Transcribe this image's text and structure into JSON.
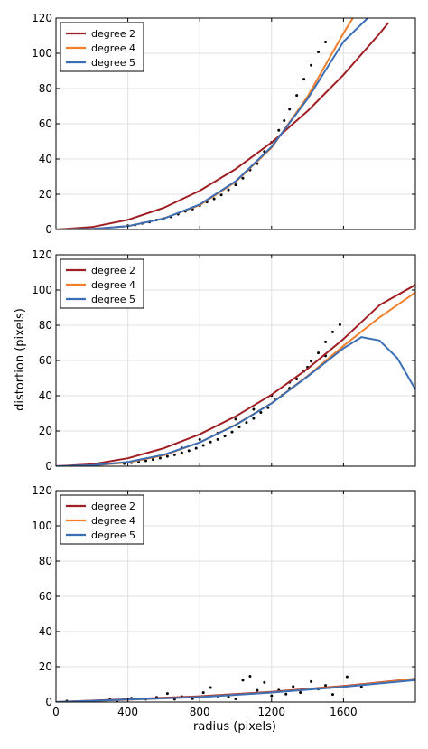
{
  "chart_data": {
    "type": "scatter",
    "xlabel": "radius (pixels)",
    "ylabel": "distortion (pixels)",
    "xlim": [
      0,
      2000
    ],
    "ylim": [
      0,
      120
    ],
    "x_ticks": [
      "0",
      "400",
      "800",
      "1200",
      "1600"
    ],
    "x_tick_values": [
      0,
      400,
      800,
      1200,
      1600
    ],
    "y_ticks": [
      "0",
      "20",
      "40",
      "60",
      "80",
      "100",
      "120"
    ],
    "y_tick_values": [
      0,
      20,
      40,
      60,
      80,
      100,
      120
    ],
    "grid": true,
    "legend_position": "top-left",
    "series_colors": {
      "degree 2": "#a01f24",
      "degree 4": "#f07f2b",
      "degree 5": "#3a6eb5"
    },
    "panels": [
      {
        "legend": [
          "degree 2",
          "degree 4",
          "degree 5"
        ],
        "scatter": [
          [
            400,
            2.2
          ],
          [
            440,
            2.6
          ],
          [
            480,
            3.5
          ],
          [
            520,
            4.2
          ],
          [
            560,
            5.4
          ],
          [
            600,
            6.3
          ],
          [
            640,
            7.2
          ],
          [
            680,
            8.7
          ],
          [
            720,
            10.3
          ],
          [
            760,
            11.6
          ],
          [
            800,
            13.5
          ],
          [
            840,
            15.6
          ],
          [
            880,
            17.4
          ],
          [
            920,
            19.6
          ],
          [
            960,
            22.5
          ],
          [
            1000,
            25.3
          ],
          [
            1040,
            29.1
          ],
          [
            1080,
            33.8
          ],
          [
            1120,
            37.4
          ],
          [
            1160,
            44.2
          ],
          [
            1200,
            49.5
          ],
          [
            1240,
            56.3
          ],
          [
            1270,
            61.8
          ],
          [
            1300,
            68.3
          ],
          [
            1340,
            76.1
          ],
          [
            1380,
            85.3
          ],
          [
            1420,
            93.2
          ],
          [
            1460,
            100.8
          ],
          [
            1500,
            106.4
          ]
        ],
        "series": [
          {
            "name": "degree 2",
            "x": [
              0,
              200,
              400,
              600,
              800,
              1000,
              1200,
              1400,
              1600,
              1800,
              1850
            ],
            "y": [
              0,
              1.4,
              5.5,
              12.3,
              22,
              34.3,
              49.4,
              67.2,
              87.8,
              111.1,
              117.4
            ]
          },
          {
            "name": "degree 4",
            "x": [
              0,
              200,
              400,
              600,
              800,
              1000,
              1200,
              1400,
              1600,
              1700
            ],
            "y": [
              0,
              0.3,
              1.9,
              6.3,
              13.8,
              27,
              46.4,
              75.4,
              111.4,
              128
            ]
          },
          {
            "name": "degree 5",
            "x": [
              0,
              200,
              400,
              600,
              800,
              1000,
              1200,
              1400,
              1600,
              1800,
              1850,
              1900,
              2000
            ],
            "y": [
              0,
              0.3,
              1.9,
              6.2,
              14.2,
              27.4,
              46.9,
              74.1,
              106.6,
              126.5,
              129,
              128,
              121
            ]
          }
        ]
      },
      {
        "legend": [
          "degree 2",
          "degree 4",
          "degree 5"
        ],
        "scatter": [
          [
            380,
            1.5
          ],
          [
            420,
            2
          ],
          [
            460,
            2.4
          ],
          [
            500,
            3.1
          ],
          [
            540,
            3.8
          ],
          [
            580,
            4.6
          ],
          [
            620,
            5.6
          ],
          [
            660,
            6.5
          ],
          [
            700,
            7.6
          ],
          [
            740,
            8.8
          ],
          [
            780,
            10.2
          ],
          [
            820,
            11.8
          ],
          [
            860,
            13.7
          ],
          [
            900,
            15.2
          ],
          [
            940,
            17.1
          ],
          [
            980,
            19.4
          ],
          [
            1020,
            22.3
          ],
          [
            1060,
            24.8
          ],
          [
            1100,
            27.1
          ],
          [
            1140,
            30.5
          ],
          [
            1180,
            33.2
          ],
          [
            1220,
            37.6
          ],
          [
            1260,
            40.4
          ],
          [
            1300,
            44.3
          ],
          [
            1340,
            49.5
          ],
          [
            1380,
            53.9
          ],
          [
            1420,
            59.6
          ],
          [
            1460,
            64.3
          ],
          [
            1500,
            70.6
          ],
          [
            1540,
            76.2
          ],
          [
            1580,
            80.3
          ],
          [
            1000,
            26.7
          ],
          [
            1100,
            32.3
          ],
          [
            1200,
            40.1
          ],
          [
            1300,
            47.6
          ],
          [
            1400,
            56.2
          ],
          [
            1500,
            62.6
          ],
          [
            900,
            18.7
          ],
          [
            800,
            15.2
          ],
          [
            700,
            10.4
          ]
        ],
        "series": [
          {
            "name": "degree 2",
            "x": [
              0,
              200,
              400,
              600,
              800,
              1000,
              1200,
              1400,
              1600,
              1800,
              2000
            ],
            "y": [
              0,
              1.1,
              4.5,
              10.2,
              18.1,
              28.3,
              40.6,
              55.3,
              72.2,
              91.4,
              102.9
            ]
          },
          {
            "name": "degree 4",
            "x": [
              0,
              200,
              400,
              600,
              800,
              1000,
              1200,
              1400,
              1600,
              1800,
              2000
            ],
            "y": [
              0,
              0.4,
              2.1,
              6.2,
              13.5,
              23.6,
              35.8,
              51.2,
              68.3,
              84.4,
              98.6
            ]
          },
          {
            "name": "degree 5",
            "x": [
              0,
              200,
              400,
              600,
              800,
              1000,
              1200,
              1400,
              1600,
              1700,
              1800,
              1900,
              2000
            ],
            "y": [
              0,
              0.5,
              2.4,
              6.5,
              13.5,
              23.4,
              35.7,
              50.9,
              66.9,
              73.3,
              71.4,
              61.3,
              43.6
            ]
          }
        ]
      },
      {
        "legend": [
          "degree 2",
          "degree 4",
          "degree 5"
        ],
        "scatter": [
          [
            60,
            0.6
          ],
          [
            300,
            1.4
          ],
          [
            340,
            0.9
          ],
          [
            420,
            2.2
          ],
          [
            500,
            1.6
          ],
          [
            560,
            2.7
          ],
          [
            620,
            4.8
          ],
          [
            660,
            1.6
          ],
          [
            700,
            3.1
          ],
          [
            760,
            1.9
          ],
          [
            820,
            5.3
          ],
          [
            860,
            8.2
          ],
          [
            900,
            3.4
          ],
          [
            960,
            2.9
          ],
          [
            1000,
            1.8
          ],
          [
            1040,
            12.4
          ],
          [
            1080,
            14.6
          ],
          [
            1120,
            6.6
          ],
          [
            1160,
            11.1
          ],
          [
            1200,
            3.6
          ],
          [
            1240,
            6.7
          ],
          [
            1280,
            4.5
          ],
          [
            1320,
            8.8
          ],
          [
            1360,
            5.4
          ],
          [
            1420,
            11.6
          ],
          [
            1460,
            7.4
          ],
          [
            1500,
            9.4
          ],
          [
            1540,
            4.3
          ],
          [
            1620,
            14.3
          ],
          [
            1700,
            8.6
          ]
        ],
        "series": [
          {
            "name": "degree 2",
            "x": [
              0,
              400,
              800,
              1200,
              1600,
              2000
            ],
            "y": [
              0,
              1.6,
              3.3,
              5.8,
              9.1,
              13.2
            ]
          },
          {
            "name": "degree 4",
            "x": [
              0,
              400,
              800,
              1200,
              1600,
              2000
            ],
            "y": [
              0,
              1.3,
              2.9,
              5.5,
              8.8,
              13.1
            ]
          },
          {
            "name": "degree 5",
            "x": [
              0,
              400,
              800,
              1200,
              1600,
              2000
            ],
            "y": [
              0,
              1.4,
              2.8,
              5.4,
              8.6,
              12.4
            ]
          }
        ]
      }
    ]
  }
}
